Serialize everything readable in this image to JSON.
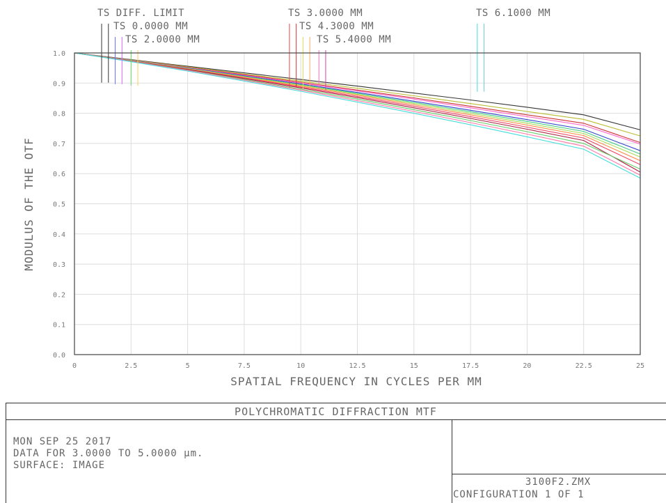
{
  "chart_data": {
    "type": "line",
    "title": "POLYCHROMATIC DIFFRACTION MTF",
    "xlabel": "SPATIAL FREQUENCY IN CYCLES PER MM",
    "ylabel": "MODULUS OF THE OTF",
    "xlim": [
      0,
      25
    ],
    "ylim": [
      0,
      1
    ],
    "grid": true,
    "x_ticks": [
      "0",
      "2.5",
      "5",
      "7.5",
      "10",
      "12.5",
      "15",
      "17.5",
      "20",
      "22.5",
      "25"
    ],
    "y_ticks": [
      "0.0",
      "0.1",
      "0.2",
      "0.3",
      "0.4",
      "0.5",
      "0.6",
      "0.7",
      "0.8",
      "0.9",
      "1.0"
    ],
    "legend": [
      {
        "label": "TS DIFF. LIMIT",
        "marker_x": [
          1.2,
          1.5
        ],
        "colors": [
          "#333333",
          "#333333"
        ]
      },
      {
        "label": "TS 0.0000 MM",
        "marker_x": [
          1.8,
          2.1
        ],
        "colors": [
          "#6d6dff",
          "#cc66ff"
        ]
      },
      {
        "label": "TS 2.0000 MM",
        "marker_x": [
          2.5,
          2.8
        ],
        "colors": [
          "#66dd66",
          "#ffcc55"
        ]
      },
      {
        "label": "TS 3.0000 MM",
        "marker_x": [
          9.5,
          9.8
        ],
        "colors": [
          "#ee4444",
          "#cc3333"
        ]
      },
      {
        "label": "TS 4.3000 MM",
        "marker_x": [
          10.1,
          10.4
        ],
        "colors": [
          "#dddd55",
          "#ffaa66"
        ]
      },
      {
        "label": "TS 5.4000 MM",
        "marker_x": [
          10.8,
          11.1
        ],
        "colors": [
          "#ff66cc",
          "#cc44aa"
        ]
      },
      {
        "label": "TS 6.1000 MM",
        "marker_x": [
          17.8,
          18.1
        ],
        "colors": [
          "#44dddd",
          "#66cccc"
        ]
      }
    ],
    "x": [
      0,
      2.5,
      5,
      7.5,
      10,
      12.5,
      15,
      17.5,
      20,
      22.5,
      25
    ],
    "series": [
      {
        "color": "#333333",
        "values": [
          1.0,
          0.978,
          0.956,
          0.934,
          0.912,
          0.89,
          0.867,
          0.844,
          0.82,
          0.795,
          0.745
        ]
      },
      {
        "color": "#bbbb33",
        "values": [
          1.0,
          0.977,
          0.954,
          0.93,
          0.907,
          0.883,
          0.858,
          0.832,
          0.806,
          0.78,
          0.725
        ]
      },
      {
        "color": "#cc3333",
        "values": [
          1.0,
          0.976,
          0.952,
          0.928,
          0.903,
          0.877,
          0.851,
          0.823,
          0.795,
          0.767,
          0.703
        ]
      },
      {
        "color": "#ff66cc",
        "values": [
          1.0,
          0.976,
          0.951,
          0.926,
          0.9,
          0.874,
          0.847,
          0.818,
          0.789,
          0.76,
          0.698
        ]
      },
      {
        "color": "#3344cc",
        "values": [
          1.0,
          0.975,
          0.95,
          0.924,
          0.897,
          0.869,
          0.84,
          0.81,
          0.779,
          0.747,
          0.676
        ]
      },
      {
        "color": "#44cc88",
        "values": [
          1.0,
          0.975,
          0.949,
          0.922,
          0.895,
          0.866,
          0.836,
          0.805,
          0.773,
          0.74,
          0.665
        ]
      },
      {
        "color": "#aadd55",
        "values": [
          1.0,
          0.974,
          0.948,
          0.921,
          0.893,
          0.863,
          0.832,
          0.8,
          0.767,
          0.733,
          0.655
        ]
      },
      {
        "color": "#ff8844",
        "values": [
          1.0,
          0.974,
          0.947,
          0.919,
          0.89,
          0.86,
          0.828,
          0.795,
          0.761,
          0.726,
          0.643
        ]
      },
      {
        "color": "#ee4466",
        "values": [
          1.0,
          0.973,
          0.946,
          0.917,
          0.887,
          0.856,
          0.823,
          0.789,
          0.754,
          0.718,
          0.63
        ]
      },
      {
        "color": "#aa2244",
        "values": [
          1.0,
          0.973,
          0.945,
          0.915,
          0.884,
          0.852,
          0.818,
          0.783,
          0.747,
          0.71,
          0.605
        ]
      },
      {
        "color": "#66cc66",
        "values": [
          1.0,
          0.972,
          0.943,
          0.912,
          0.88,
          0.847,
          0.812,
          0.776,
          0.739,
          0.7,
          0.615
        ]
      },
      {
        "color": "#ff77aa",
        "values": [
          1.0,
          0.972,
          0.942,
          0.91,
          0.877,
          0.842,
          0.806,
          0.769,
          0.731,
          0.691,
          0.595
        ]
      },
      {
        "color": "#44dddd",
        "values": [
          1.0,
          0.971,
          0.94,
          0.907,
          0.873,
          0.837,
          0.8,
          0.762,
          0.722,
          0.681,
          0.585
        ]
      }
    ]
  },
  "info": {
    "title": "POLYCHROMATIC DIFFRACTION MTF",
    "date": "MON SEP 25 2017",
    "data_range": "DATA FOR 3.0000 TO 5.0000 µm.",
    "surface": "SURFACE: IMAGE",
    "file": "3100F2.ZMX",
    "configuration": "CONFIGURATION 1 OF 1"
  }
}
